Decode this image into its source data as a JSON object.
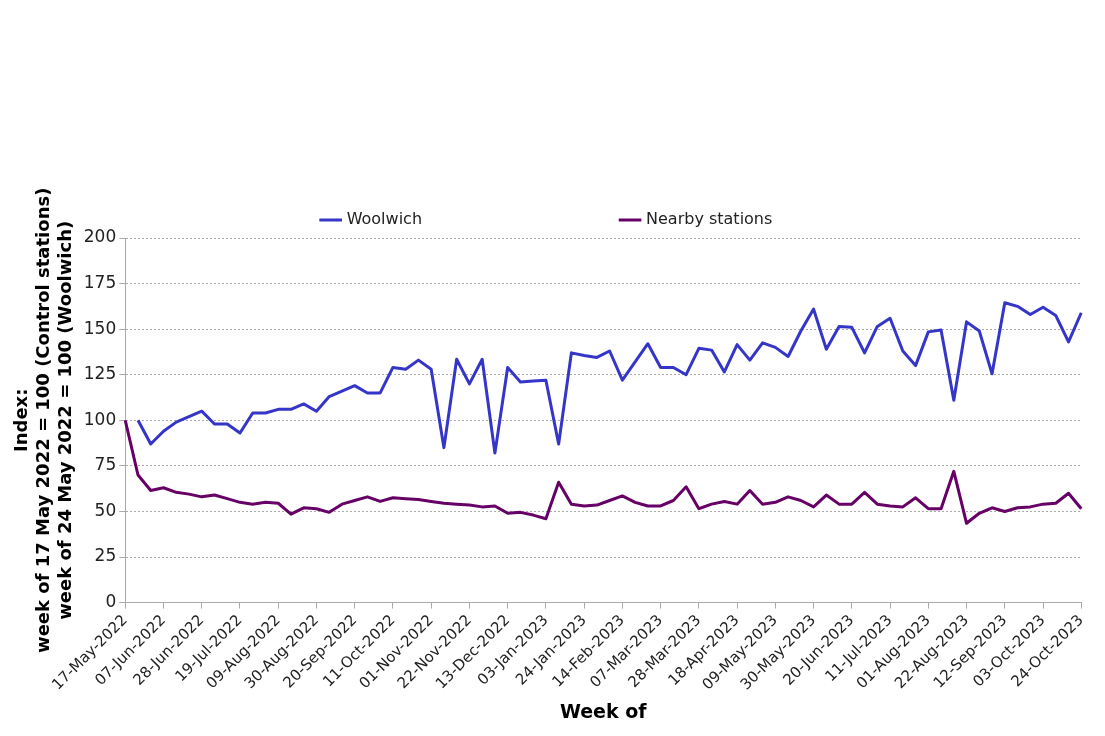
{
  "chart_data": {
    "type": "line",
    "xlabel": "Week of",
    "ylabel": "Index:\nweek of 17 May 2022 = 100 (Control stations)\nweek of 24 May 2022 = 100 (Woolwich)",
    "categories": [
      "17-May-2022",
      null,
      null,
      "07-Jun-2022",
      null,
      null,
      "28-Jun-2022",
      null,
      null,
      "19-Jul-2022",
      null,
      null,
      "09-Aug-2022",
      null,
      null,
      "30-Aug-2022",
      null,
      null,
      "20-Sep-2022",
      null,
      null,
      "11-Oct-2022",
      null,
      null,
      "01-Nov-2022",
      null,
      null,
      "22-Nov-2022",
      null,
      null,
      "13-Dec-2022",
      null,
      null,
      "03-Jan-2023",
      null,
      null,
      "24-Jan-2023",
      null,
      null,
      "14-Feb-2023",
      null,
      null,
      "07-Mar-2023",
      null,
      null,
      "28-Mar-2023",
      null,
      null,
      "18-Apr-2023",
      null,
      null,
      "09-May-2023",
      null,
      null,
      "30-May-2023",
      null,
      null,
      "20-Jun-2023",
      null,
      null,
      "11-Jul-2023",
      null,
      null,
      "01-Aug-2023",
      null,
      null,
      "22-Aug-2023",
      null,
      null,
      "12-Sep-2023",
      null,
      null,
      "03-Oct-2023",
      null,
      null,
      "24-Oct-2023"
    ],
    "series": [
      {
        "name": "Woolwich",
        "color": "#3535c8",
        "values": [
          null,
          100,
          87,
          94,
          99,
          102,
          105,
          98,
          98,
          93,
          104,
          104,
          106,
          106,
          109,
          105,
          113,
          116,
          119,
          115,
          115,
          129,
          128,
          133,
          128,
          85,
          133.5,
          120,
          133.5,
          82,
          129,
          121,
          121.5,
          122,
          87,
          137,
          135.5,
          134.5,
          138,
          122,
          132,
          142,
          129,
          129,
          125,
          139.5,
          138.5,
          126.5,
          141.5,
          133,
          142.5,
          140,
          135,
          149,
          161,
          139,
          151.5,
          151,
          137,
          151.5,
          156,
          138,
          130,
          148.5,
          149.5,
          111,
          154,
          149,
          125.5,
          164.5,
          162.5,
          158,
          162,
          157.5,
          143,
          159
        ]
      },
      {
        "name": "Nearby stations",
        "color": "#660066",
        "values": [
          100,
          70,
          61.5,
          63,
          60.5,
          59.5,
          58,
          59,
          57,
          55,
          54,
          55,
          54.5,
          48.5,
          52,
          51.5,
          49.5,
          54,
          56,
          58,
          55.5,
          57.5,
          57,
          56.5,
          55.5,
          54.5,
          54,
          53.5,
          52.5,
          53,
          49,
          49.5,
          48,
          46,
          66,
          54,
          53,
          53.5,
          56,
          58.5,
          55,
          53,
          53,
          56,
          63.5,
          51.5,
          54,
          55.5,
          54,
          61.5,
          54,
          55,
          58,
          56,
          52.5,
          59,
          54,
          54,
          60.5,
          54,
          53,
          52.5,
          57.5,
          51.5,
          51.5,
          72,
          43.5,
          49,
          52,
          50,
          52,
          52.5,
          54,
          54.5,
          60,
          51.5
        ]
      }
    ],
    "ylim": [
      0,
      200
    ],
    "yticks": [
      0,
      25,
      50,
      75,
      100,
      125,
      150,
      175,
      200
    ],
    "grid": "y",
    "legend": "top",
    "marker": "none",
    "line_style": "solid"
  }
}
